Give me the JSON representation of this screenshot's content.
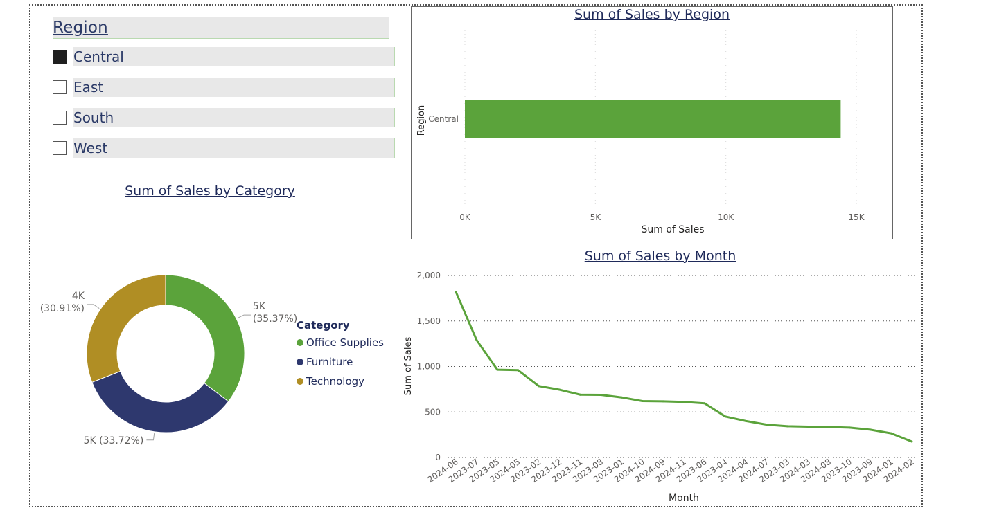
{
  "slicer": {
    "title": "Region",
    "items": [
      {
        "label": "Central",
        "checked": true
      },
      {
        "label": "East",
        "checked": false
      },
      {
        "label": "South",
        "checked": false
      },
      {
        "label": "West",
        "checked": false
      }
    ]
  },
  "colors": {
    "green": "#5ba33b",
    "navy": "#2e386e",
    "gold": "#b08e24",
    "title": "#1f2a5a"
  },
  "chart_data": [
    {
      "type": "bar",
      "orientation": "horizontal",
      "title": "Sum of Sales by Region",
      "xlabel": "Sum of Sales",
      "ylabel": "Region",
      "categories": [
        "Central"
      ],
      "values": [
        14400
      ],
      "xlim": [
        0,
        15000
      ],
      "xticks": [
        {
          "value": 0,
          "label": "0K"
        },
        {
          "value": 5000,
          "label": "5K"
        },
        {
          "value": 10000,
          "label": "10K"
        },
        {
          "value": 15000,
          "label": "15K"
        }
      ],
      "color": "#5ba33b",
      "grid": true
    },
    {
      "type": "pie",
      "variant": "donut",
      "title": "Sum of Sales by Category",
      "legend_title": "Category",
      "legend_position": "right",
      "slices": [
        {
          "name": "Office Supplies",
          "value": 5000,
          "percent": 35.37,
          "value_label": "5K",
          "percent_label": "(35.37%)",
          "color": "#5ba33b"
        },
        {
          "name": "Furniture",
          "value": 5000,
          "percent": 33.72,
          "value_label": "5K",
          "percent_label": "(33.72%)",
          "color": "#2e386e"
        },
        {
          "name": "Technology",
          "value": 4000,
          "percent": 30.91,
          "value_label": "4K",
          "percent_label": "(30.91%)",
          "color": "#b08e24"
        }
      ]
    },
    {
      "type": "line",
      "title": "Sum of Sales by Month",
      "xlabel": "Month",
      "ylabel": "Sum of Sales",
      "ylim": [
        0,
        2000
      ],
      "yticks": [
        {
          "value": 0,
          "label": "0"
        },
        {
          "value": 500,
          "label": "500"
        },
        {
          "value": 1000,
          "label": "1,000"
        },
        {
          "value": 1500,
          "label": "1,500"
        },
        {
          "value": 2000,
          "label": "2,000"
        }
      ],
      "x": [
        "2024-06",
        "2023-07",
        "2023-05",
        "2024-05",
        "2023-02",
        "2023-12",
        "2023-11",
        "2023-08",
        "2023-01",
        "2024-10",
        "2024-09",
        "2024-11",
        "2023-06",
        "2023-04",
        "2024-04",
        "2024-07",
        "2023-03",
        "2024-03",
        "2024-08",
        "2023-10",
        "2023-09",
        "2024-01",
        "2024-02"
      ],
      "values": [
        1820,
        1290,
        965,
        960,
        785,
        745,
        690,
        688,
        660,
        620,
        617,
        610,
        595,
        450,
        400,
        360,
        343,
        338,
        335,
        328,
        305,
        265,
        175
      ],
      "color": "#5ba33b",
      "grid": true
    }
  ]
}
